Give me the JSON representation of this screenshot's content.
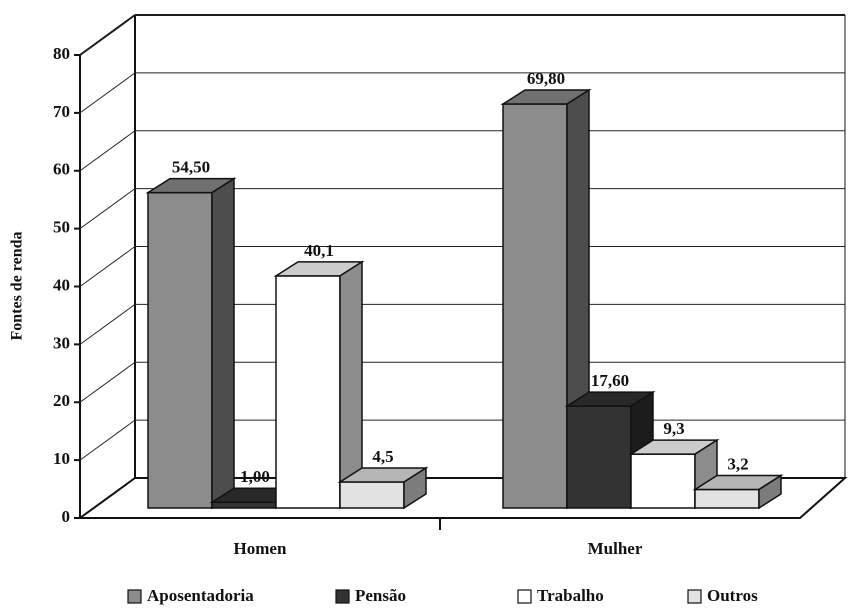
{
  "chart_data": {
    "type": "bar3d",
    "y_label": "Fontes de renda",
    "categories": [
      "Homen",
      "Mulher"
    ],
    "series": [
      {
        "name": "Aposentadoria",
        "color": "#8c8c8c",
        "values": [
          54.5,
          69.8
        ],
        "value_labels": [
          "54,50",
          "69,80"
        ]
      },
      {
        "name": "Pensão",
        "color": "#333333",
        "values": [
          1.0,
          17.6
        ],
        "value_labels": [
          "1,00",
          "17,60"
        ]
      },
      {
        "name": "Trabalho",
        "color": "#ffffff",
        "values": [
          40.1,
          9.3
        ],
        "value_labels": [
          "40,1",
          "9,3"
        ]
      },
      {
        "name": "Outros",
        "color": "#e2e2e2",
        "values": [
          4.5,
          3.2
        ],
        "value_labels": [
          "4,5",
          "3,2"
        ]
      }
    ],
    "ylim": [
      0,
      80
    ],
    "yticks": [
      0,
      10,
      20,
      30,
      40,
      50,
      60,
      70,
      80
    ],
    "grid": true
  }
}
